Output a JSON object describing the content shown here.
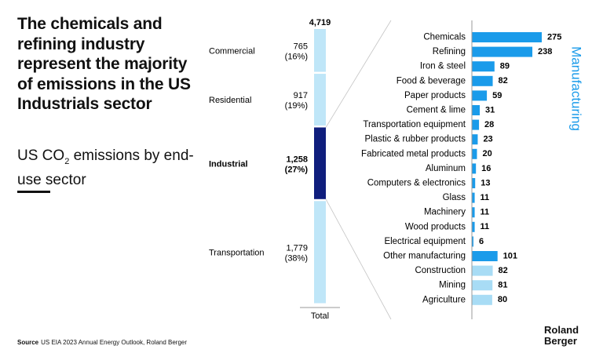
{
  "headline": "The chemicals and refining industry represent the majority of emissions in the US Industrials sector",
  "subtitle": {
    "prefix": "US CO",
    "sub": "2",
    "suffix": " emissions by end-use sector"
  },
  "source": {
    "label": "Source",
    "text": "US EIA 2023 Annual Energy Outlook, Roland Berger"
  },
  "logo": {
    "line1": "Roland",
    "line2": "Berger"
  },
  "colors": {
    "light": "#bfe6f8",
    "industrial": "#0f1e7d",
    "manufacturing": "#1a9bea",
    "other": "#a8dcf5",
    "axis": "#999999"
  },
  "chart_data": [
    {
      "type": "bar",
      "stacked": true,
      "total_label": "4,719",
      "xlabel": "Total",
      "categories": [
        "Commercial",
        "Residential",
        "Industrial",
        "Transportation"
      ],
      "values": [
        765,
        917,
        1258,
        1779
      ],
      "value_labels": [
        "765",
        "917",
        "1,258",
        "1,779"
      ],
      "share_labels": [
        "(16%)",
        "(19%)",
        "(27%)",
        "(38%)"
      ],
      "highlight": "Industrial"
    },
    {
      "type": "bar",
      "orientation": "horizontal",
      "group_label": "Manufacturing",
      "categories": [
        "Chemicals",
        "Refining",
        "Iron & steel",
        "Food & beverage",
        "Paper products",
        "Cement & lime",
        "Transportation equipment",
        "Plastic & rubber products",
        "Fabricated metal products",
        "Aluminum",
        "Computers & electronics",
        "Glass",
        "Machinery",
        "Wood products",
        "Electrical equipment",
        "Other manufacturing",
        "Construction",
        "Mining",
        "Agriculture"
      ],
      "values": [
        275,
        238,
        89,
        82,
        59,
        31,
        28,
        23,
        20,
        16,
        13,
        11,
        11,
        11,
        6,
        101,
        82,
        81,
        80
      ],
      "manufacturing_count": 16
    }
  ]
}
